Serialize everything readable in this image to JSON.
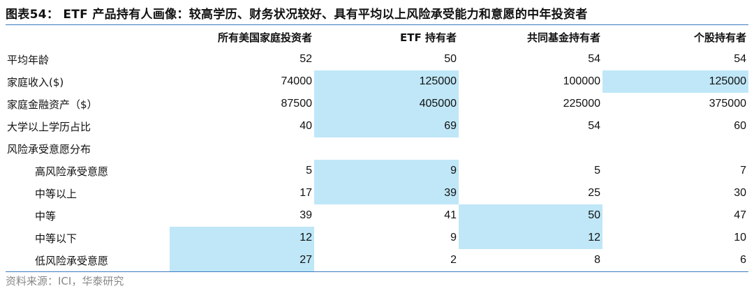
{
  "title": "图表54： ETF 产品持有人画像：较高学历、财务状况较好、具有平均以上风险承受能力和意愿的中年投资者",
  "table": {
    "columns": [
      "所有美国家庭投资者",
      "ETF 持有者",
      "共同基金持有者",
      "个股持有者"
    ],
    "rows": [
      {
        "label": "平均年龄",
        "values": [
          52,
          50,
          54,
          54
        ]
      },
      {
        "label": "家庭收入($)",
        "values": [
          74000,
          125000,
          100000,
          125000
        ]
      },
      {
        "label": "家庭金融资产（$）",
        "values": [
          87500,
          405000,
          225000,
          375000
        ]
      },
      {
        "label": "大学以上学历占比",
        "values": [
          40,
          69,
          54,
          60
        ]
      },
      {
        "label": "风险承受意愿分布"
      },
      {
        "label": "高风险承受意愿",
        "values": [
          5,
          9,
          5,
          7
        ]
      },
      {
        "label": "中等以上",
        "values": [
          17,
          39,
          25,
          30
        ]
      },
      {
        "label": "中等",
        "values": [
          39,
          41,
          50,
          47
        ]
      },
      {
        "label": "中等以下",
        "values": [
          12,
          9,
          12,
          10
        ]
      },
      {
        "label": "低风险承受意愿",
        "values": [
          27,
          2,
          8,
          6
        ]
      }
    ]
  },
  "source": "资料来源：ICI，华泰研究"
}
